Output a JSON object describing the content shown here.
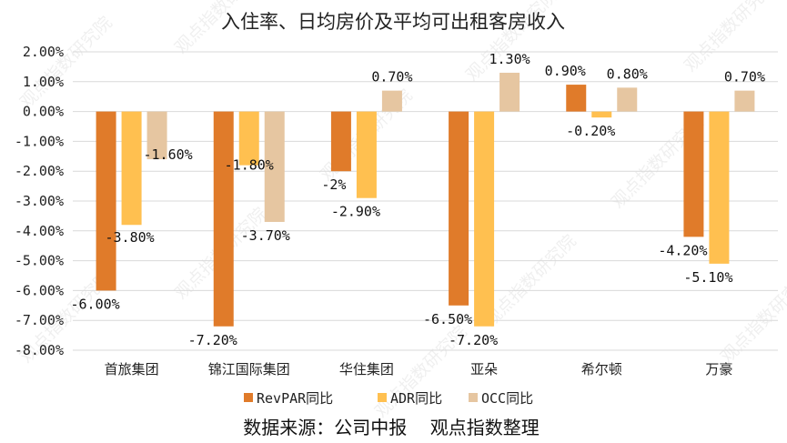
{
  "chart_data": {
    "type": "bar",
    "title": "入住率、日均房价及平均可出租客房收入",
    "categories": [
      "首旅集团",
      "锦江国际集团",
      "华住集团",
      "亚朵",
      "希尔顿",
      "万豪"
    ],
    "series": [
      {
        "name": "RevPAR同比",
        "color": "#E07B2A",
        "values": [
          -6.0,
          -7.2,
          -2.0,
          -6.5,
          0.9,
          -4.2
        ],
        "labels": [
          "-6.00%",
          "-7.20%",
          "-2%",
          "-6.50%",
          "0.90%",
          "-4.20%"
        ]
      },
      {
        "name": "ADR同比",
        "color": "#FFC050",
        "values": [
          -3.8,
          -1.8,
          -2.9,
          -7.2,
          -0.2,
          -5.1
        ],
        "labels": [
          "-3.80%",
          "-1.80%",
          "-2.90%",
          "-7.20%",
          "-0.20%",
          "-5.10%"
        ]
      },
      {
        "name": "OCC同比",
        "color": "#E6C6A1",
        "values": [
          -1.6,
          -3.7,
          0.7,
          1.3,
          0.8,
          0.7
        ],
        "labels": [
          "-1.60%",
          "-3.70%",
          "0.70%",
          "1.30%",
          "0.80%",
          "0.70%"
        ]
      }
    ],
    "ylim": [
      -8,
      2
    ],
    "yticks": [
      "2.00%",
      "1.00%",
      "0.00%",
      "-1.00%",
      "-2.00%",
      "-3.00%",
      "-4.00%",
      "-5.00%",
      "-6.00%",
      "-7.00%",
      "-8.00%"
    ],
    "grid": true,
    "legend": "bottom",
    "source": "数据来源：公司中报    观点指数整理"
  },
  "watermark": "观点指数研究院"
}
